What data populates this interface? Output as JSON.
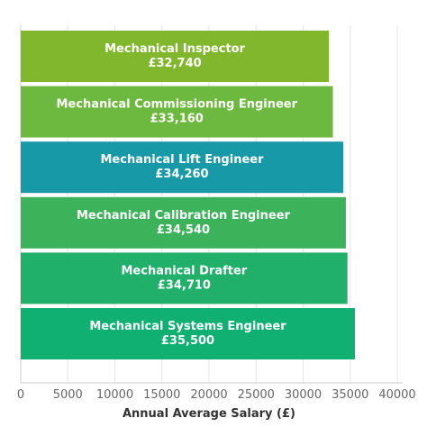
{
  "chart_data": {
    "type": "bar",
    "orientation": "horizontal",
    "categories": [
      "Mechanical Inspector",
      "Mechanical Commissioning Engineer",
      "Mechanical Lift Engineer",
      "Mechanical Calibration Engineer",
      "Mechanical Drafter",
      "Mechanical Systems Engineer"
    ],
    "values": [
      32740,
      33160,
      34260,
      34540,
      34710,
      35500
    ],
    "value_labels": [
      "£32,740",
      "£33,160",
      "£34,260",
      "£34,540",
      "£34,710",
      "£35,500"
    ],
    "colors": [
      "#80b72d",
      "#6db83f",
      "#1899a8",
      "#3cb35a",
      "#21b069",
      "#10b073"
    ],
    "xlabel": "Annual Average Salary (£)",
    "ylabel": "",
    "xlim": [
      0,
      40000
    ],
    "xticks": [
      0,
      5000,
      10000,
      15000,
      20000,
      25000,
      30000,
      35000,
      40000
    ],
    "xtick_labels": [
      "0",
      "5000",
      "10000",
      "15000",
      "20000",
      "25000",
      "30000",
      "35000",
      "40000"
    ],
    "grid": "vertical",
    "legend": "none"
  }
}
